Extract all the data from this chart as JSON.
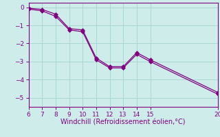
{
  "line1_x": [
    6,
    7,
    8,
    9,
    10,
    11,
    12,
    13,
    14,
    15,
    20
  ],
  "line1_y": [
    -0.05,
    -0.12,
    -0.38,
    -1.18,
    -1.25,
    -2.8,
    -3.28,
    -3.28,
    -2.5,
    -2.9,
    -4.7
  ],
  "line2_x": [
    6,
    7,
    8,
    9,
    10,
    11,
    12,
    13,
    14,
    15,
    20
  ],
  "line2_y": [
    -0.1,
    -0.2,
    -0.5,
    -1.25,
    -1.35,
    -2.9,
    -3.35,
    -3.35,
    -2.6,
    -3.0,
    -4.8
  ],
  "line_color": "#800080",
  "marker": "D",
  "marker_size": 3,
  "xlabel": "Windchill (Refroidissement éolien,°C)",
  "xlim": [
    6,
    20
  ],
  "ylim": [
    -5.5,
    0.25
  ],
  "xticks": [
    6,
    7,
    8,
    9,
    10,
    11,
    12,
    13,
    14,
    15,
    20
  ],
  "yticks": [
    0,
    -1,
    -2,
    -3,
    -4,
    -5
  ],
  "background_color": "#ceecea",
  "grid_color": "#a8d8d4",
  "tick_color": "#800080",
  "label_color": "#800080",
  "tick_fontsize": 6.5,
  "label_fontsize": 7
}
